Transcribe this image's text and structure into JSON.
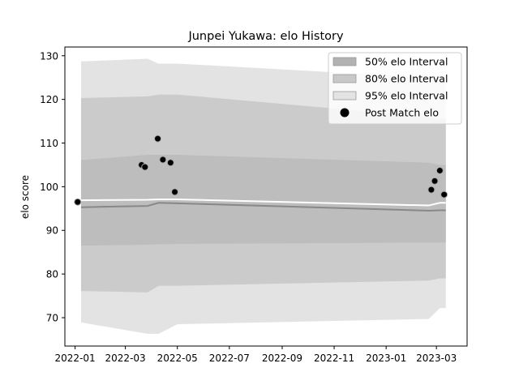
{
  "chart_data": {
    "type": "area",
    "title": "Junpei Yukawa: elo History",
    "xlabel": "",
    "ylabel": "elo score",
    "xlim": [
      "2021-12-20",
      "2023-04-06"
    ],
    "ylim": [
      63.5,
      132
    ],
    "x_ticks": [
      "2022-01",
      "2022-03",
      "2022-05",
      "2022-07",
      "2022-09",
      "2022-11",
      "2023-01",
      "2023-03"
    ],
    "y_ticks": [
      70,
      80,
      90,
      100,
      110,
      120,
      130
    ],
    "grid": false,
    "legend_position": "top-right",
    "band_dates": [
      "2022-01-08",
      "2022-03-27",
      "2022-04-09",
      "2022-05-01",
      "2023-02-20",
      "2023-03-05",
      "2023-03-12"
    ],
    "bands": [
      {
        "name": "95% elo Interval",
        "color": "#e3e3e3",
        "lower": [
          68.9,
          66.3,
          66.3,
          68.5,
          69.7,
          72.2,
          72.2
        ],
        "upper": [
          128.7,
          129.3,
          128.2,
          128.2,
          125.0,
          125.5,
          125.5
        ]
      },
      {
        "name": "80% elo Interval",
        "color": "#cbcbcb",
        "lower": [
          76.1,
          75.8,
          77.3,
          77.3,
          78.5,
          79.0,
          79.0
        ],
        "upper": [
          120.3,
          120.7,
          121.1,
          121.1,
          116.0,
          115.5,
          115.5
        ]
      },
      {
        "name": "50% elo Interval",
        "color": "#bdbdbd",
        "lower": [
          86.5,
          86.7,
          86.8,
          86.9,
          87.2,
          87.2,
          87.2
        ],
        "upper": [
          106.1,
          107.3,
          107.3,
          107.3,
          105.5,
          105.0,
          105.0
        ]
      }
    ],
    "mean_line": [
      95.3,
      95.6,
      96.3,
      96.2,
      94.5,
      94.6,
      94.6
    ],
    "white_line": [
      96.9,
      97.0,
      97.1,
      97.1,
      95.7,
      96.3,
      96.3
    ],
    "points": {
      "name": "Post Match elo",
      "x": [
        "2022-01-04",
        "2022-03-20",
        "2022-03-24",
        "2022-04-08",
        "2022-04-14",
        "2022-04-23",
        "2022-04-28",
        "2023-02-23",
        "2023-02-27",
        "2023-03-05",
        "2023-03-10"
      ],
      "y": [
        96.5,
        105.0,
        104.5,
        111.0,
        106.2,
        105.5,
        98.8,
        99.3,
        101.3,
        103.7,
        98.2
      ]
    },
    "legend": [
      "50% elo Interval",
      "80% elo Interval",
      "95% elo Interval",
      "Post Match elo"
    ]
  }
}
